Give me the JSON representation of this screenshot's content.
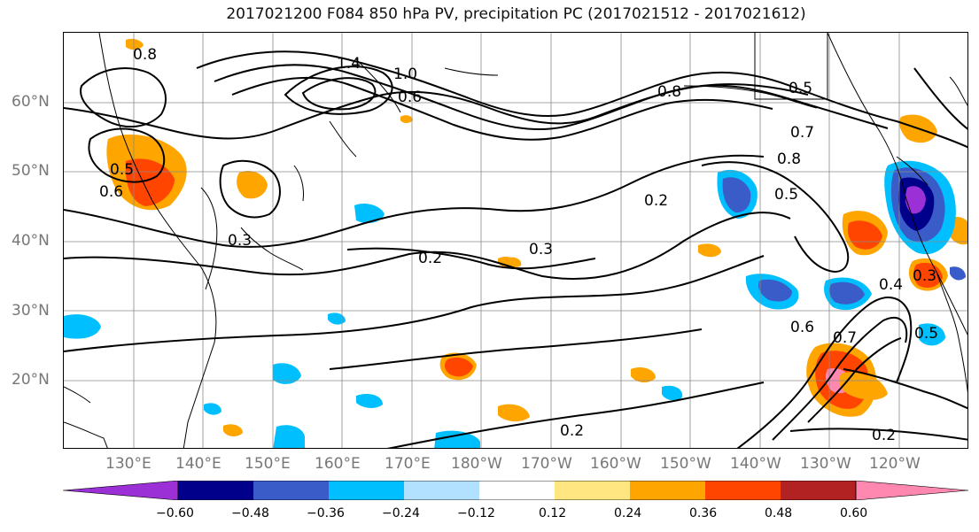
{
  "title": "2017021200 F084 850 hPa PV, precipitation PC (2017021512 - 2017021612)",
  "lat_labels": [
    "60°N",
    "50°N",
    "40°N",
    "30°N",
    "20°N"
  ],
  "lon_labels": [
    "130°E",
    "140°E",
    "150°E",
    "160°E",
    "170°E",
    "180°W",
    "170°W",
    "160°W",
    "150°W",
    "140°W",
    "130°W",
    "120°W"
  ],
  "contour_labels": [
    "0.8",
    "1.4",
    "1.0",
    "0.6",
    "0.8",
    "0.5",
    "0.7",
    "0.8",
    "0.5",
    "0.2",
    "0.3",
    "0.3",
    "0.2",
    "0.2",
    "0.2",
    "0.7",
    "0.6",
    "0.5",
    "0.4",
    "0.3",
    "0.5",
    "0.6"
  ],
  "colorbar": {
    "ticks": [
      "−0.60",
      "−0.48",
      "−0.36",
      "−0.24",
      "−0.12",
      "0.12",
      "0.24",
      "0.36",
      "0.48",
      "0.60"
    ],
    "colors": [
      "#9b30d6",
      "#00008b",
      "#3a5cc8",
      "#00bfff",
      "#b2e1ff",
      "#ffffff",
      "#ffe680",
      "#ffa500",
      "#ff4500",
      "#b22222",
      "#ff88b0"
    ]
  },
  "legend_colors": {
    "neg_deep": "#9b30d6",
    "neg_dark": "#00008b",
    "neg_mid": "#3a5cc8",
    "neg_light": "#00bfff",
    "neg_pale": "#b2e1ff",
    "pos_pale": "#ffe680",
    "pos_light": "#ffa500",
    "pos_mid": "#ff4500",
    "pos_dark": "#b22222",
    "pos_deep": "#ff88b0"
  }
}
